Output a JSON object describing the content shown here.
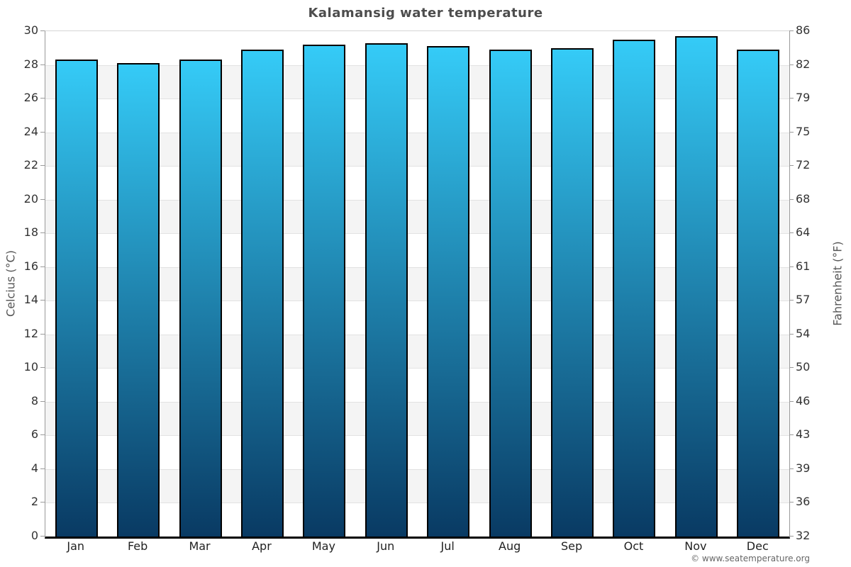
{
  "title": "Kalamansig water temperature",
  "copyright": "© www.seatemperature.org",
  "axes": {
    "left_label": "Celcius (°C)",
    "right_label": "Fahrenheit (°F)"
  },
  "chart_data": {
    "type": "bar",
    "title": "Kalamansig water temperature",
    "categories": [
      "Jan",
      "Feb",
      "Mar",
      "Apr",
      "May",
      "Jun",
      "Jul",
      "Aug",
      "Sep",
      "Oct",
      "Nov",
      "Dec"
    ],
    "series": [
      {
        "name": "Water temperature (°C)",
        "values": [
          28.3,
          28.1,
          28.3,
          28.9,
          29.2,
          29.3,
          29.1,
          28.9,
          29.0,
          29.5,
          29.7,
          28.9
        ]
      }
    ],
    "xlabel": "",
    "ylabel_left": "Celcius (°C)",
    "ylabel_right": "Fahrenheit (°F)",
    "ylim": [
      0,
      30
    ],
    "yticks_celsius": [
      0,
      2,
      4,
      6,
      8,
      10,
      12,
      14,
      16,
      18,
      20,
      22,
      24,
      26,
      28,
      30
    ],
    "yticks_fahrenheit": [
      32,
      36,
      39,
      43,
      46,
      50,
      54,
      57,
      61,
      64,
      68,
      72,
      75,
      79,
      82,
      86
    ],
    "grid": "horizontal-bands-alternating",
    "legend_position": "none"
  },
  "colors": {
    "bar_top": "#35cbf7",
    "bar_bottom": "#093a63",
    "bar_border": "#000000",
    "band_gray": "#f4f4f4",
    "band_white": "#ffffff",
    "gridline": "#e2e2e2",
    "spine": "#9a9a9a",
    "bottom_axis": "#000000",
    "title_text": "#4d4d4d",
    "tick_text": "#333333",
    "axis_label_text": "#555555",
    "copyright_text": "#666666"
  }
}
